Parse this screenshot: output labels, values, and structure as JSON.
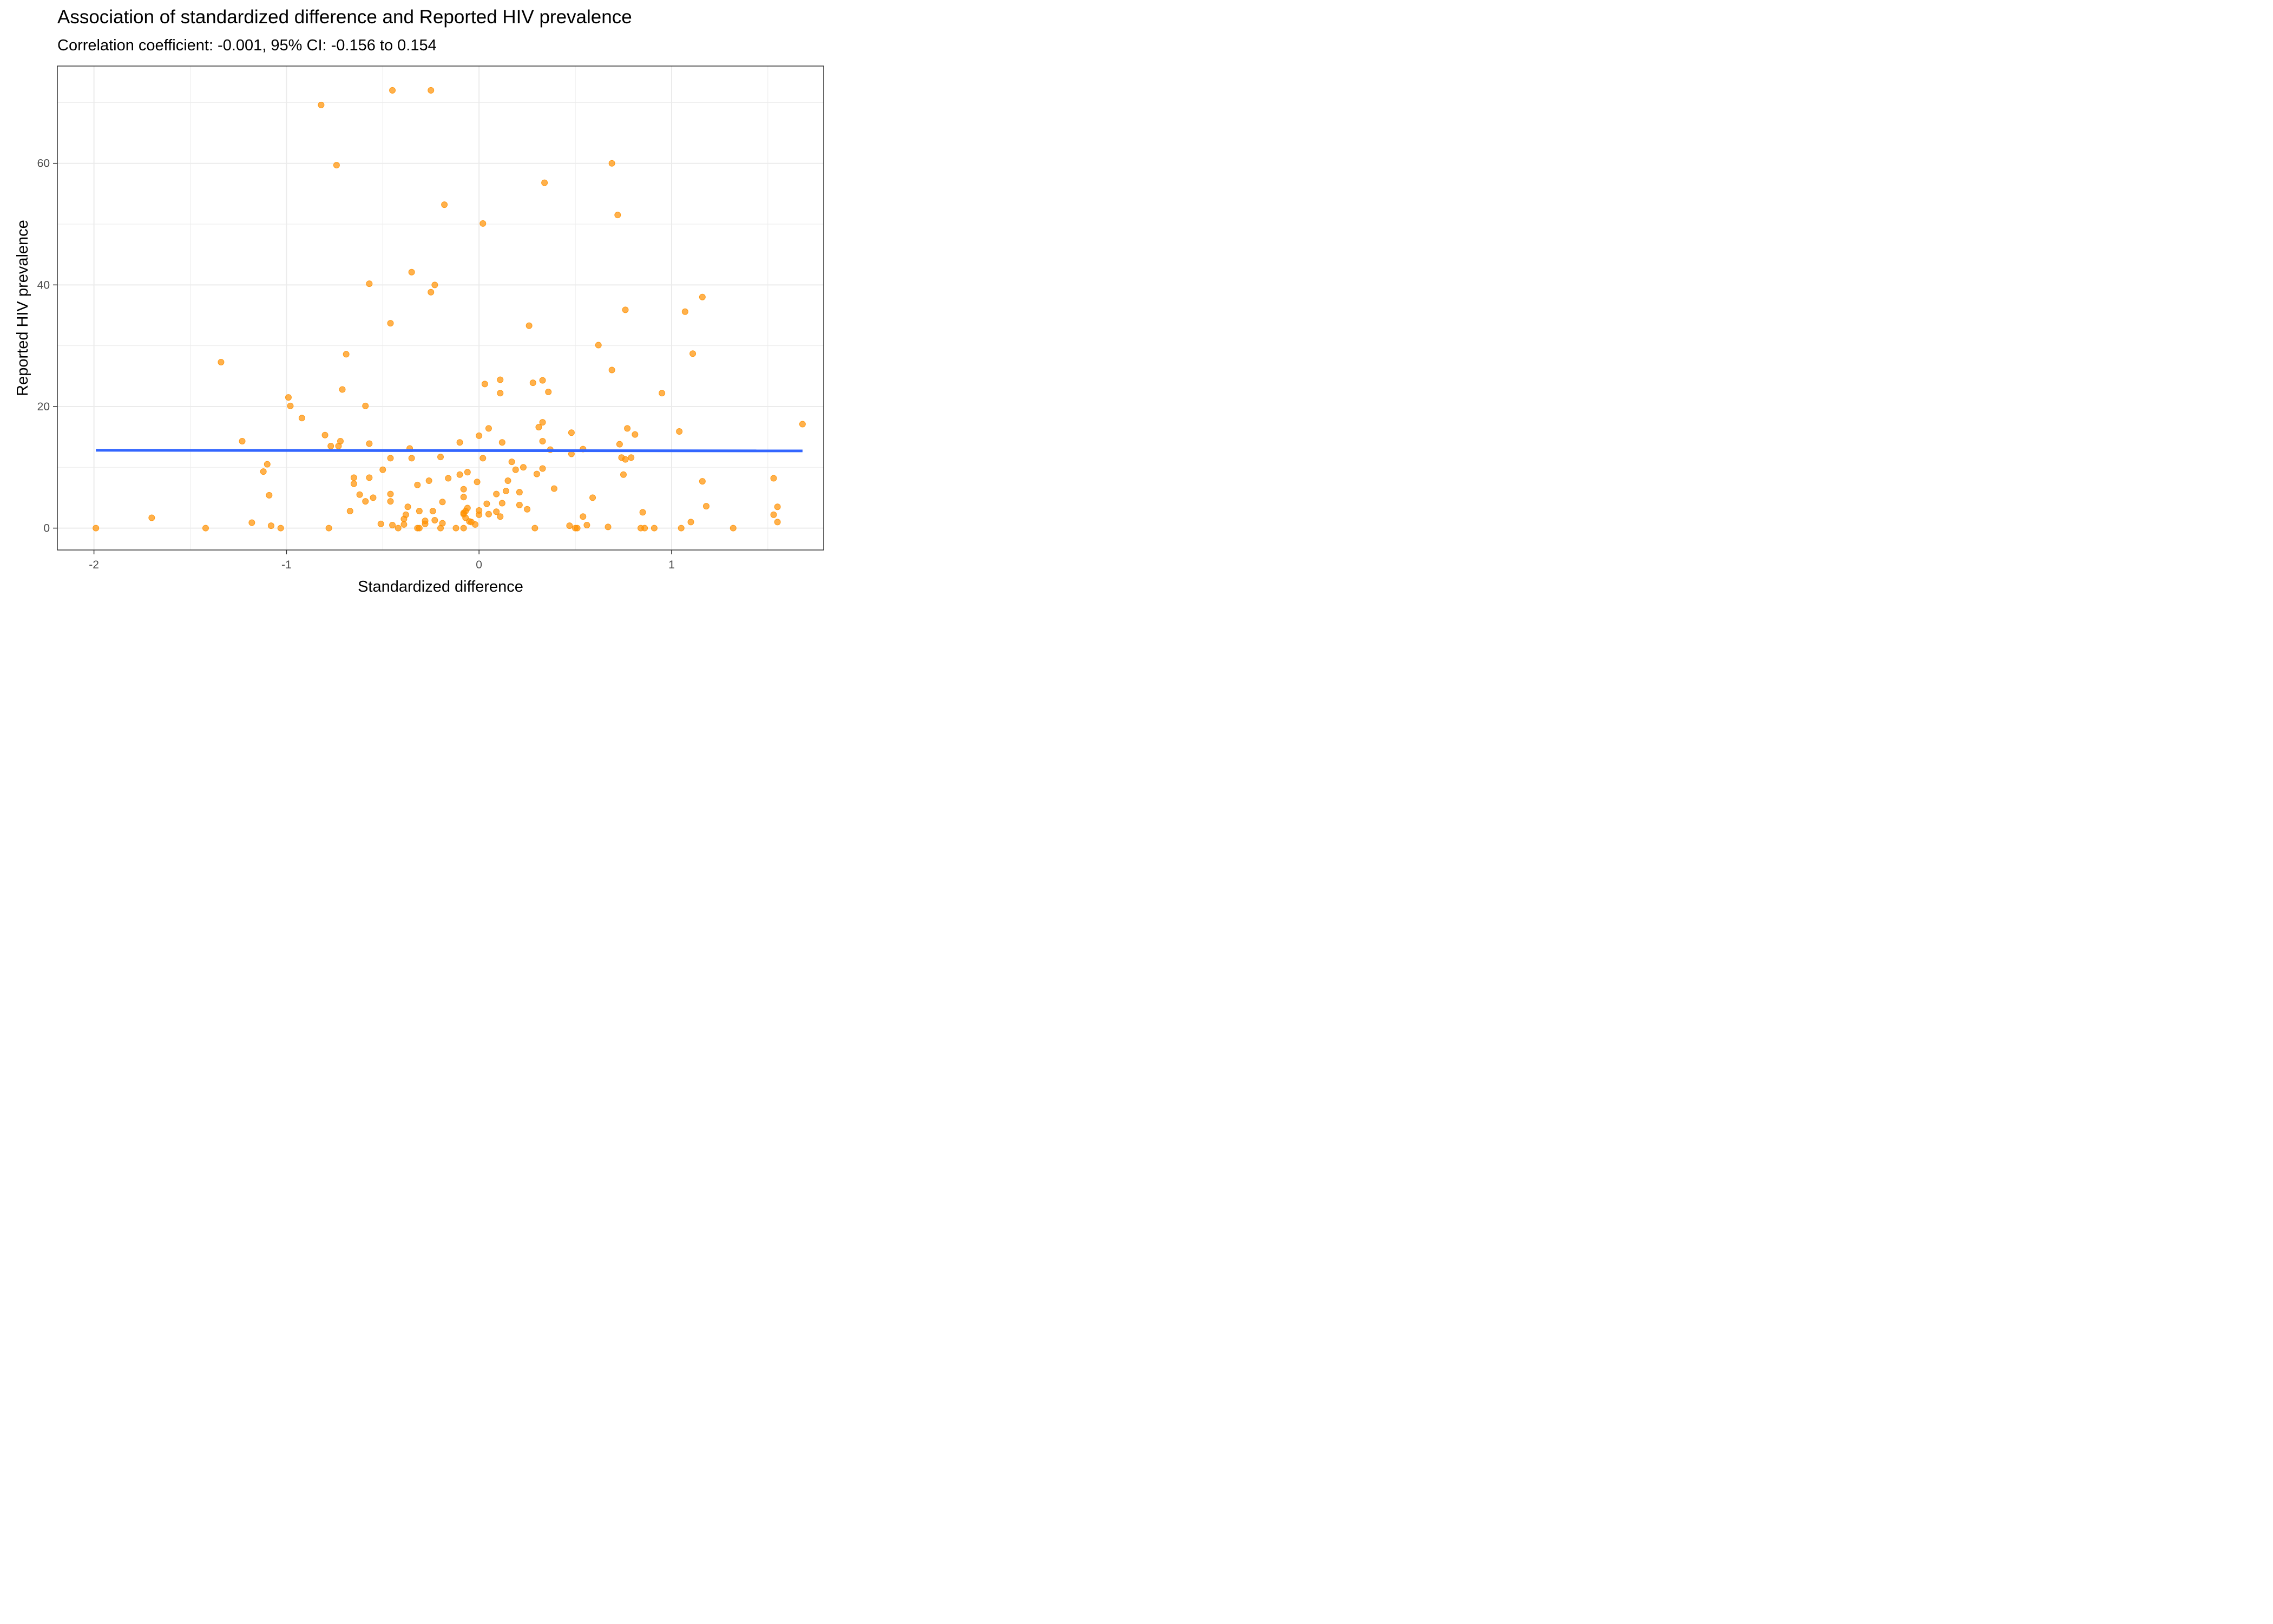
{
  "chart_data": {
    "type": "scatter",
    "title": "Association of standardized difference and Reported HIV prevalence",
    "subtitle": "Correlation coefficient: -0.001, 95% CI: -0.156 to 0.154",
    "xlabel": "Standardized difference",
    "ylabel": "Reported HIV prevalence",
    "xlim": [
      -2.19,
      1.79
    ],
    "ylim": [
      -3.6,
      76.0
    ],
    "x_ticks": [
      -2,
      -1,
      0,
      1
    ],
    "x_tick_labels": [
      "-2",
      "-1",
      "0",
      "1"
    ],
    "y_ticks": [
      0,
      20,
      40,
      60
    ],
    "y_tick_labels": [
      "0",
      "20",
      "40",
      "60"
    ],
    "grid": true,
    "legend": "none",
    "point_color": "#ff9000",
    "line_color": "#3366ff",
    "trend_line": {
      "x": [
        -1.99,
        1.68
      ],
      "y": [
        12.8,
        12.7
      ]
    },
    "points": [
      [
        -0.45,
        72.0
      ],
      [
        -0.25,
        72.0
      ],
      [
        -0.82,
        69.6
      ],
      [
        -0.74,
        59.7
      ],
      [
        0.69,
        60.0
      ],
      [
        0.34,
        56.8
      ],
      [
        -0.18,
        53.2
      ],
      [
        0.72,
        51.5
      ],
      [
        0.02,
        50.1
      ],
      [
        -0.35,
        42.1
      ],
      [
        -0.57,
        40.2
      ],
      [
        -0.23,
        40.0
      ],
      [
        -0.25,
        38.8
      ],
      [
        1.16,
        38.0
      ],
      [
        0.76,
        35.9
      ],
      [
        1.07,
        35.6
      ],
      [
        -0.46,
        33.7
      ],
      [
        0.26,
        33.3
      ],
      [
        0.62,
        30.1
      ],
      [
        -0.69,
        28.6
      ],
      [
        1.11,
        28.7
      ],
      [
        -1.34,
        27.3
      ],
      [
        0.69,
        26.0
      ],
      [
        0.11,
        24.4
      ],
      [
        0.33,
        24.3
      ],
      [
        0.03,
        23.7
      ],
      [
        0.28,
        23.9
      ],
      [
        -0.71,
        22.8
      ],
      [
        0.11,
        22.2
      ],
      [
        0.36,
        22.4
      ],
      [
        0.95,
        22.2
      ],
      [
        -0.99,
        21.5
      ],
      [
        -0.98,
        20.1
      ],
      [
        -0.59,
        20.1
      ],
      [
        -0.92,
        18.1
      ],
      [
        0.33,
        17.4
      ],
      [
        1.68,
        17.1
      ],
      [
        0.31,
        16.6
      ],
      [
        0.05,
        16.4
      ],
      [
        0.77,
        16.4
      ],
      [
        1.04,
        15.9
      ],
      [
        0.48,
        15.7
      ],
      [
        0.81,
        15.4
      ],
      [
        -0.8,
        15.3
      ],
      [
        0.0,
        15.2
      ],
      [
        0.33,
        14.3
      ],
      [
        -1.23,
        14.3
      ],
      [
        -0.72,
        14.3
      ],
      [
        -0.1,
        14.1
      ],
      [
        0.12,
        14.1
      ],
      [
        -0.57,
        13.9
      ],
      [
        0.73,
        13.8
      ],
      [
        -0.77,
        13.5
      ],
      [
        -0.73,
        13.5
      ],
      [
        -0.36,
        13.1
      ],
      [
        0.37,
        12.9
      ],
      [
        0.54,
        13.0
      ],
      [
        0.48,
        12.2
      ],
      [
        -0.2,
        11.7
      ],
      [
        0.74,
        11.6
      ],
      [
        0.79,
        11.6
      ],
      [
        -0.46,
        11.5
      ],
      [
        -0.35,
        11.5
      ],
      [
        0.02,
        11.5
      ],
      [
        0.76,
        11.3
      ],
      [
        0.17,
        10.9
      ],
      [
        -1.1,
        10.5
      ],
      [
        0.23,
        10.0
      ],
      [
        0.33,
        9.8
      ],
      [
        0.19,
        9.6
      ],
      [
        -0.5,
        9.6
      ],
      [
        -1.12,
        9.3
      ],
      [
        -0.06,
        9.2
      ],
      [
        -0.1,
        8.8
      ],
      [
        0.3,
        8.9
      ],
      [
        0.75,
        8.8
      ],
      [
        -0.57,
        8.3
      ],
      [
        -0.65,
        8.3
      ],
      [
        -0.16,
        8.2
      ],
      [
        1.53,
        8.2
      ],
      [
        -0.26,
        7.8
      ],
      [
        0.15,
        7.8
      ],
      [
        1.16,
        7.7
      ],
      [
        -0.01,
        7.6
      ],
      [
        -0.65,
        7.3
      ],
      [
        -0.32,
        7.1
      ],
      [
        0.39,
        6.5
      ],
      [
        -0.08,
        6.4
      ],
      [
        0.14,
        6.1
      ],
      [
        0.21,
        5.9
      ],
      [
        -0.46,
        5.6
      ],
      [
        0.09,
        5.6
      ],
      [
        -1.09,
        5.4
      ],
      [
        -0.62,
        5.5
      ],
      [
        -0.55,
        5.0
      ],
      [
        -0.08,
        5.1
      ],
      [
        0.59,
        5.0
      ],
      [
        -0.59,
        4.4
      ],
      [
        -0.46,
        4.4
      ],
      [
        -0.19,
        4.3
      ],
      [
        0.04,
        4.0
      ],
      [
        0.12,
        4.1
      ],
      [
        0.21,
        3.8
      ],
      [
        -0.37,
        3.5
      ],
      [
        1.18,
        3.6
      ],
      [
        1.55,
        3.5
      ],
      [
        -0.06,
        3.3
      ],
      [
        0.25,
        3.1
      ],
      [
        -0.67,
        2.8
      ],
      [
        -0.31,
        2.8
      ],
      [
        -0.24,
        2.8
      ],
      [
        0.0,
        2.9
      ],
      [
        -0.07,
        2.8
      ],
      [
        0.09,
        2.7
      ],
      [
        -0.08,
        2.5
      ],
      [
        -0.38,
        2.2
      ],
      [
        0.05,
        2.3
      ],
      [
        0.0,
        2.2
      ],
      [
        -0.08,
        2.3
      ],
      [
        0.85,
        2.6
      ],
      [
        1.53,
        2.2
      ],
      [
        0.11,
        1.9
      ],
      [
        -0.07,
        1.7
      ],
      [
        0.54,
        1.9
      ],
      [
        -1.7,
        1.7
      ],
      [
        -0.39,
        1.5
      ],
      [
        -0.23,
        1.3
      ],
      [
        -0.28,
        1.2
      ],
      [
        -0.05,
        1.1
      ],
      [
        -0.04,
        1.0
      ],
      [
        1.1,
        1.0
      ],
      [
        1.55,
        1.0
      ],
      [
        -1.18,
        0.9
      ],
      [
        -0.51,
        0.7
      ],
      [
        -0.19,
        0.8
      ],
      [
        -0.28,
        0.7
      ],
      [
        -0.02,
        0.6
      ],
      [
        -0.45,
        0.5
      ],
      [
        -0.39,
        0.6
      ],
      [
        0.56,
        0.5
      ],
      [
        0.47,
        0.4
      ],
      [
        -1.08,
        0.4
      ],
      [
        0.67,
        0.2
      ],
      [
        -1.99,
        0.0
      ],
      [
        -1.42,
        0.0
      ],
      [
        -1.03,
        0.0
      ],
      [
        -0.78,
        0.0
      ],
      [
        -0.42,
        0.0
      ],
      [
        -0.32,
        0.0
      ],
      [
        -0.31,
        0.0
      ],
      [
        -0.2,
        0.0
      ],
      [
        -0.12,
        0.0
      ],
      [
        -0.08,
        0.0
      ],
      [
        0.29,
        0.0
      ],
      [
        0.5,
        0.0
      ],
      [
        0.51,
        0.0
      ],
      [
        0.84,
        0.0
      ],
      [
        0.86,
        0.0
      ],
      [
        0.91,
        0.0
      ],
      [
        1.05,
        0.0
      ],
      [
        1.32,
        0.0
      ]
    ]
  }
}
